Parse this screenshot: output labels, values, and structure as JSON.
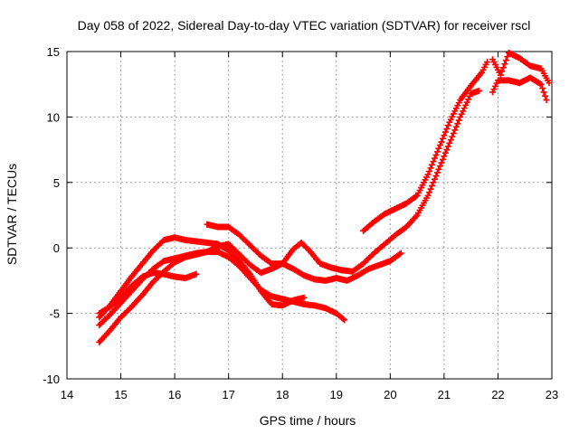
{
  "chart_data": {
    "type": "scatter",
    "title": "Day 058 of 2022, Sidereal Day-to-day VTEC variation (SDTVAR) for receiver rscl",
    "xlabel": "GPS time / hours",
    "ylabel": "SDTVAR / TECUs",
    "xlim": [
      14,
      23
    ],
    "ylim": [
      -10,
      15
    ],
    "xticks": [
      14,
      15,
      16,
      17,
      18,
      19,
      20,
      21,
      22,
      23
    ],
    "yticks": [
      -10,
      -5,
      0,
      5,
      10,
      15
    ],
    "grid": true,
    "marker": "+",
    "color": "#ff0000",
    "series": [
      {
        "name": "track-1",
        "points": [
          [
            14.6,
            -7.2
          ],
          [
            14.8,
            -6.3
          ],
          [
            15.0,
            -5.3
          ],
          [
            15.2,
            -4.5
          ],
          [
            15.4,
            -3.6
          ],
          [
            15.6,
            -2.6
          ],
          [
            15.8,
            -1.8
          ],
          [
            16.0,
            -1.1
          ],
          [
            16.2,
            -0.7
          ],
          [
            16.4,
            -0.5
          ],
          [
            16.6,
            -0.3
          ],
          [
            16.8,
            -0.3
          ],
          [
            17.0,
            -0.7
          ],
          [
            17.2,
            -1.4
          ],
          [
            17.4,
            -2.3
          ],
          [
            17.6,
            -3.2
          ],
          [
            17.8,
            -3.7
          ],
          [
            18.0,
            -3.9
          ],
          [
            18.2,
            -4.1
          ],
          [
            18.4,
            -4.3
          ],
          [
            18.6,
            -4.4
          ],
          [
            18.8,
            -4.6
          ],
          [
            19.0,
            -5.0
          ],
          [
            19.15,
            -5.5
          ]
        ]
      },
      {
        "name": "track-2",
        "points": [
          [
            14.6,
            -5.9
          ],
          [
            14.8,
            -5.1
          ],
          [
            15.0,
            -4.2
          ],
          [
            15.2,
            -3.3
          ],
          [
            15.4,
            -2.4
          ],
          [
            15.6,
            -1.6
          ],
          [
            15.8,
            -1.0
          ],
          [
            16.0,
            -0.8
          ],
          [
            16.2,
            -0.6
          ],
          [
            16.4,
            -0.4
          ],
          [
            16.6,
            -0.3
          ],
          [
            16.8,
            0.1
          ],
          [
            17.0,
            0.3
          ],
          [
            17.2,
            -0.5
          ],
          [
            17.4,
            -1.3
          ],
          [
            17.6,
            -1.9
          ],
          [
            17.8,
            -1.6
          ],
          [
            18.0,
            -1.2
          ],
          [
            18.2,
            -1.6
          ],
          [
            18.4,
            -2.1
          ],
          [
            18.6,
            -2.4
          ],
          [
            18.8,
            -2.5
          ],
          [
            19.0,
            -2.3
          ],
          [
            19.2,
            -2.5
          ],
          [
            19.4,
            -2.1
          ],
          [
            19.6,
            -1.6
          ],
          [
            19.8,
            -1.3
          ],
          [
            20.0,
            -1.0
          ],
          [
            20.2,
            -0.4
          ]
        ]
      },
      {
        "name": "track-3",
        "points": [
          [
            14.6,
            -5.0
          ],
          [
            14.8,
            -4.5
          ],
          [
            15.0,
            -3.8
          ],
          [
            15.2,
            -2.9
          ],
          [
            15.4,
            -2.2
          ],
          [
            15.6,
            -1.9
          ],
          [
            15.8,
            -2.0
          ],
          [
            16.0,
            -2.2
          ],
          [
            16.2,
            -2.3
          ],
          [
            16.4,
            -2.0
          ]
        ]
      },
      {
        "name": "track-4",
        "points": [
          [
            14.6,
            -5.3
          ],
          [
            14.8,
            -4.4
          ],
          [
            15.0,
            -3.3
          ],
          [
            15.2,
            -2.2
          ],
          [
            15.4,
            -1.2
          ],
          [
            15.6,
            -0.2
          ],
          [
            15.8,
            0.6
          ],
          [
            16.0,
            0.8
          ],
          [
            16.2,
            0.6
          ],
          [
            16.4,
            0.5
          ],
          [
            16.6,
            0.4
          ],
          [
            16.8,
            0.3
          ],
          [
            17.0,
            -0.2
          ],
          [
            17.2,
            -1.0
          ],
          [
            17.4,
            -2.0
          ],
          [
            17.6,
            -3.3
          ],
          [
            17.8,
            -4.3
          ],
          [
            18.0,
            -4.4
          ],
          [
            18.2,
            -4.0
          ],
          [
            18.4,
            -3.8
          ]
        ]
      },
      {
        "name": "track-5",
        "points": [
          [
            16.6,
            1.8
          ],
          [
            16.8,
            1.6
          ],
          [
            17.0,
            1.6
          ],
          [
            17.2,
            1.0
          ],
          [
            17.4,
            0.2
          ],
          [
            17.6,
            -0.6
          ],
          [
            17.8,
            -1.2
          ],
          [
            18.0,
            -1.2
          ],
          [
            18.2,
            -0.1
          ],
          [
            18.35,
            0.4
          ],
          [
            18.5,
            -0.2
          ],
          [
            18.7,
            -1.2
          ],
          [
            18.9,
            -1.5
          ],
          [
            19.1,
            -1.7
          ],
          [
            19.3,
            -1.8
          ],
          [
            19.5,
            -1.2
          ],
          [
            19.7,
            -0.4
          ],
          [
            19.9,
            0.3
          ],
          [
            20.1,
            1.0
          ],
          [
            20.3,
            1.6
          ],
          [
            20.5,
            2.5
          ],
          [
            20.7,
            4.0
          ],
          [
            20.9,
            6.0
          ],
          [
            21.1,
            8.0
          ],
          [
            21.3,
            10.0
          ],
          [
            21.5,
            11.8
          ],
          [
            21.65,
            12.0
          ]
        ]
      },
      {
        "name": "track-6",
        "points": [
          [
            19.5,
            1.3
          ],
          [
            19.7,
            2.0
          ],
          [
            19.9,
            2.6
          ],
          [
            20.1,
            3.0
          ],
          [
            20.3,
            3.4
          ],
          [
            20.5,
            4.0
          ],
          [
            20.7,
            5.6
          ],
          [
            20.9,
            7.6
          ],
          [
            21.1,
            9.6
          ],
          [
            21.3,
            11.3
          ],
          [
            21.5,
            12.4
          ],
          [
            21.7,
            13.4
          ],
          [
            21.8,
            14.2
          ]
        ]
      },
      {
        "name": "track-7",
        "points": [
          [
            21.9,
            11.9
          ],
          [
            22.0,
            12.8
          ],
          [
            22.2,
            12.8
          ],
          [
            22.4,
            12.6
          ],
          [
            22.6,
            13.0
          ],
          [
            22.8,
            12.5
          ],
          [
            22.9,
            11.3
          ]
        ]
      },
      {
        "name": "track-8",
        "points": [
          [
            21.9,
            14.4
          ],
          [
            22.05,
            13.2
          ],
          [
            22.2,
            14.9
          ],
          [
            22.4,
            14.5
          ],
          [
            22.6,
            13.9
          ],
          [
            22.8,
            13.7
          ],
          [
            22.95,
            12.6
          ]
        ]
      }
    ]
  }
}
